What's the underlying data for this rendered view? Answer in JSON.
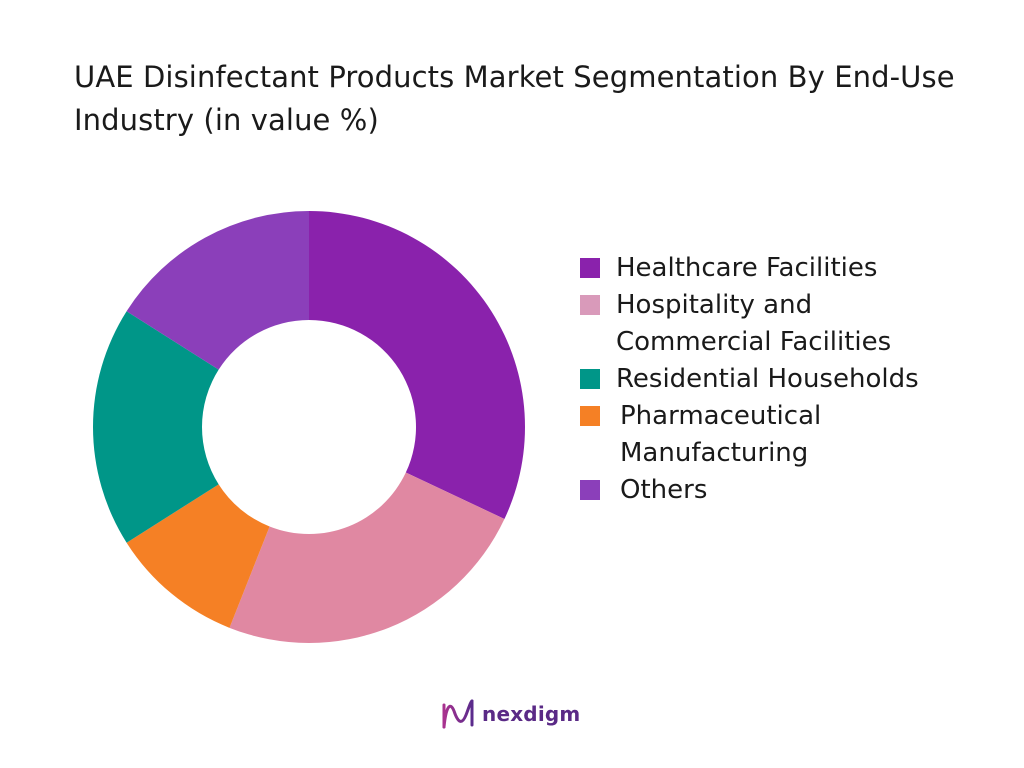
{
  "chart_data": {
    "type": "pie",
    "title": "UAE Disinfectant Products Market Segmentation By End-Use Industry (in value %)",
    "categories": [
      "Healthcare Facilities",
      "Hospitality and Commercial Facilities",
      "Residential Households",
      "Pharmaceutical Manufacturing",
      "Others"
    ],
    "values": [
      32,
      24,
      18,
      10,
      16
    ],
    "colors": [
      "#8a22ac",
      "#e088a2",
      "#009688",
      "#f58025",
      "#8b3fba"
    ],
    "legend_swatch_colors": [
      "#8a22ac",
      "#d99aba",
      "#009688",
      "#f58025",
      "#8b3fba"
    ],
    "donut": true,
    "legend_position": "right"
  },
  "legend": {
    "items": [
      "Healthcare Facilities",
      "Hospitality and Commercial Facilities",
      "Residential Households",
      "Pharmaceutical Manufacturing",
      "Others"
    ]
  },
  "logo": {
    "text": "nexdigm"
  }
}
